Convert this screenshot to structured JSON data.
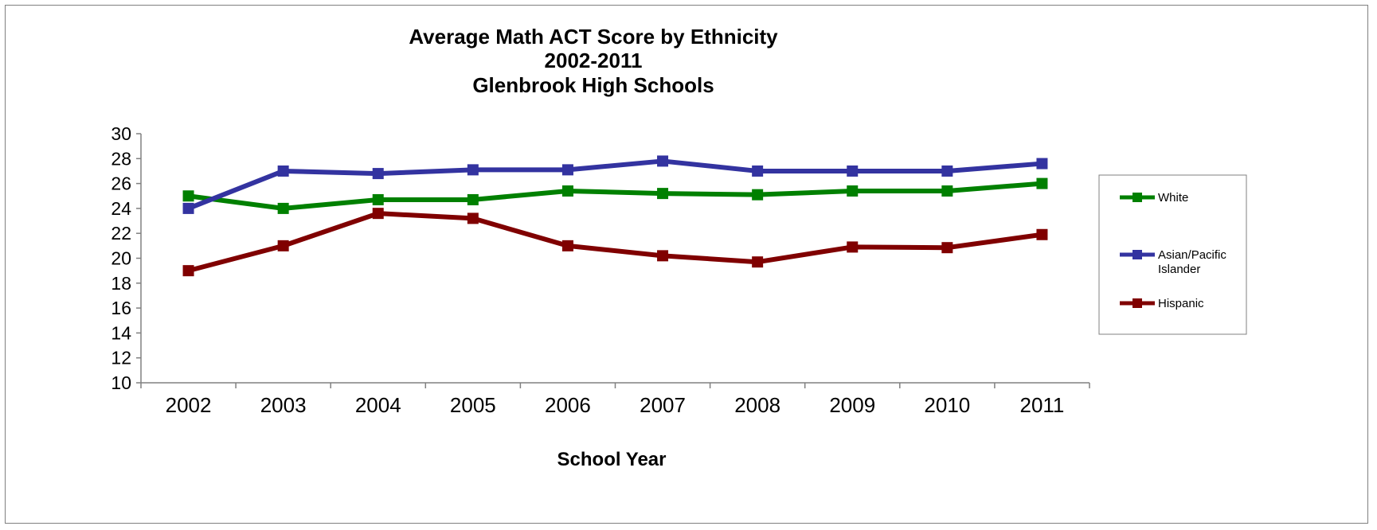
{
  "chart_data": {
    "type": "line",
    "title_lines": [
      "Average Math ACT Score by Ethnicity",
      "2002-2011",
      "Glenbrook High Schools"
    ],
    "xlabel": "School Year",
    "ylabel": "",
    "categories": [
      "2002",
      "2003",
      "2004",
      "2005",
      "2006",
      "2007",
      "2008",
      "2009",
      "2010",
      "2011"
    ],
    "ylim": [
      10,
      30
    ],
    "yticks": [
      10,
      12,
      14,
      16,
      18,
      20,
      22,
      24,
      26,
      28,
      30
    ],
    "grid": false,
    "legend_position": "right",
    "series": [
      {
        "name": "White",
        "color": "#008000",
        "values": [
          25.0,
          24.0,
          24.7,
          24.7,
          25.4,
          25.2,
          25.1,
          25.4,
          25.4,
          26.0
        ]
      },
      {
        "name": "Asian/Pacific Islander",
        "legend_lines": [
          "Asian/Pacific",
          "Islander"
        ],
        "color": "#3333A0",
        "values": [
          24.0,
          27.0,
          26.8,
          27.1,
          27.1,
          27.8,
          27.0,
          27.0,
          27.0,
          27.6
        ]
      },
      {
        "name": "Hispanic",
        "color": "#800000",
        "values": [
          19.0,
          21.0,
          23.6,
          23.2,
          21.0,
          20.2,
          19.7,
          20.9,
          20.85,
          21.9
        ]
      }
    ]
  }
}
